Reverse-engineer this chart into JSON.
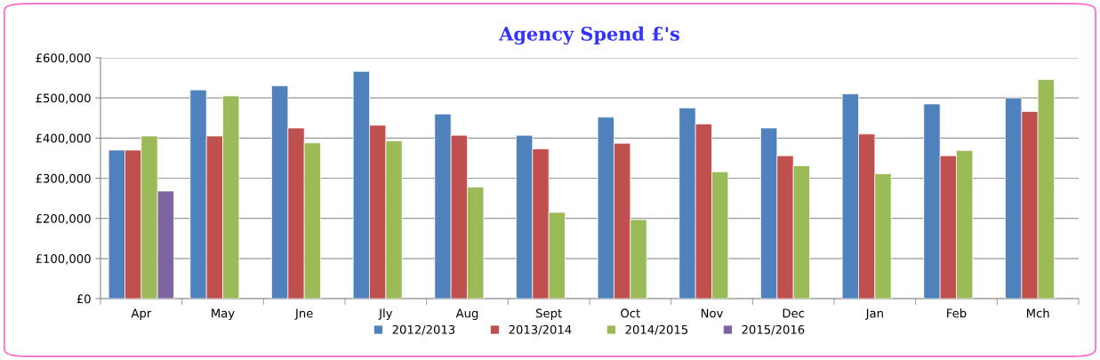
{
  "chart_data": {
    "type": "bar",
    "title": "Agency Spend £'s",
    "categories": [
      "Apr",
      "May",
      "Jne",
      "Jly",
      "Aug",
      "Sept",
      "Oct",
      "Nov",
      "Dec",
      "Jan",
      "Feb",
      "Mch"
    ],
    "series": [
      {
        "name": "2012/2013",
        "color": "#4f81bd",
        "values": [
          370000,
          520000,
          530000,
          566000,
          460000,
          407000,
          452000,
          475000,
          425000,
          510000,
          485000,
          500000
        ]
      },
      {
        "name": "2013/2014",
        "color": "#c0504d",
        "values": [
          370000,
          405000,
          425000,
          432000,
          407000,
          373000,
          387000,
          435000,
          356000,
          410000,
          356000,
          466000
        ]
      },
      {
        "name": "2014/2015",
        "color": "#9bbb59",
        "values": [
          405000,
          505000,
          388000,
          393000,
          278000,
          215000,
          197000,
          316000,
          331000,
          311000,
          369000,
          546000
        ]
      },
      {
        "name": "2015/2016",
        "color": "#8064a2",
        "values": [
          268000,
          null,
          null,
          null,
          null,
          null,
          null,
          null,
          null,
          null,
          null,
          null
        ]
      }
    ],
    "ylim": [
      0,
      600000
    ],
    "yticks": [
      {
        "value": 0,
        "label": "£0"
      },
      {
        "value": 100000,
        "label": "£100,000"
      },
      {
        "value": 200000,
        "label": "£200,000"
      },
      {
        "value": 300000,
        "label": "£300,000"
      },
      {
        "value": 400000,
        "label": "£400,000"
      },
      {
        "value": 500000,
        "label": "£500,000"
      },
      {
        "value": 600000,
        "label": "£600,000"
      }
    ],
    "grid": "y",
    "legend": "bottom"
  }
}
